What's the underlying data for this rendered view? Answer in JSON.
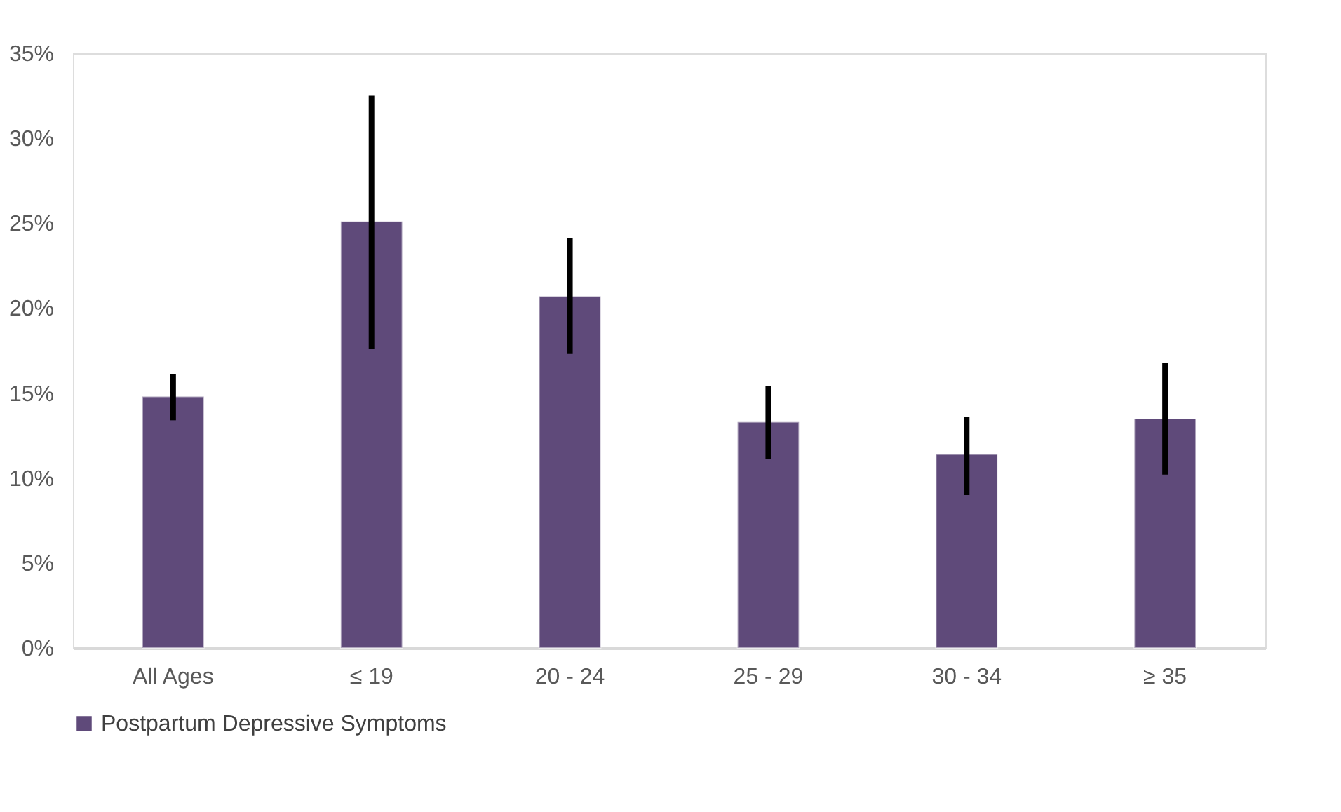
{
  "chart_data": {
    "type": "bar",
    "categories": [
      "All Ages",
      "≤ 19",
      "20 - 24",
      "25 - 29",
      "30 - 34",
      "≥ 35"
    ],
    "series": [
      {
        "name": "Postpartum Depressive Symptoms",
        "color": "#5f4a7a",
        "values": [
          14.8,
          25.1,
          20.7,
          13.3,
          11.4,
          13.5
        ],
        "errors": [
          [
            13.4,
            16.1
          ],
          [
            17.6,
            32.5
          ],
          [
            17.3,
            24.1
          ],
          [
            11.1,
            15.4
          ],
          [
            9.0,
            13.6
          ],
          [
            10.2,
            16.8
          ]
        ]
      }
    ],
    "ylim": [
      0,
      35
    ],
    "yticks": [
      {
        "value": 0,
        "label": "0%"
      },
      {
        "value": 5,
        "label": "5%"
      },
      {
        "value": 10,
        "label": "10%"
      },
      {
        "value": 15,
        "label": "15%"
      },
      {
        "value": 20,
        "label": "20%"
      },
      {
        "value": 25,
        "label": "25%"
      },
      {
        "value": 30,
        "label": "30%"
      },
      {
        "value": 35,
        "label": "35%"
      }
    ],
    "grid": false,
    "legend": "bottom"
  }
}
